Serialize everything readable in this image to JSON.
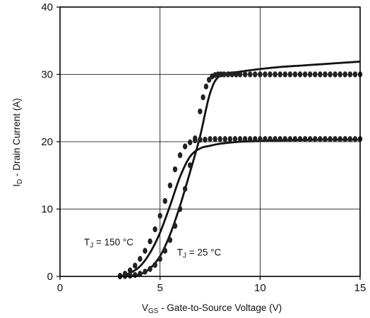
{
  "chart_data": {
    "type": "line",
    "xlabel": "V_GS - Gate-to-Source Voltage (V)",
    "xlabel_sub": {
      "main": "V",
      "sub": "GS",
      "rest": " - Gate-to-Source Voltage (V)"
    },
    "ylabel": "I_D - Drain Current (A)",
    "ylabel_sub": {
      "main": "I",
      "sub": "D",
      "rest": " - Drain Current  (A)"
    },
    "xlim": [
      0,
      15
    ],
    "ylim": [
      0,
      40
    ],
    "xticks": [
      0,
      5,
      10,
      15
    ],
    "yticks": [
      0,
      10,
      20,
      30,
      40
    ],
    "grid": true,
    "annotations": [
      {
        "main": "T",
        "sub": "J",
        "rest": " = 150 °C",
        "x": 1.2,
        "y": 4.6
      },
      {
        "main": "T",
        "sub": "J",
        "rest": " = 25 °C",
        "x": 5.85,
        "y": 3.1
      }
    ],
    "series": [
      {
        "style": "solid",
        "x": [
          3.0,
          3.5,
          4.0,
          4.5,
          5.0,
          5.5,
          6.0,
          6.5,
          7.0,
          7.5,
          8.0,
          9.0,
          10.0,
          11.0,
          12.0,
          13.0,
          14.0,
          15.0
        ],
        "y": [
          0,
          0.1,
          0.3,
          1.2,
          3.0,
          6.2,
          10.5,
          15.5,
          20.8,
          27.2,
          29.8,
          30.4,
          30.8,
          31.1,
          31.3,
          31.5,
          31.7,
          31.9
        ]
      },
      {
        "style": "solid",
        "x": [
          3.0,
          3.5,
          4.0,
          4.5,
          5.0,
          5.5,
          6.0,
          6.5,
          7.0,
          7.5,
          8.0,
          9.0,
          10.0,
          11.0,
          12.0,
          13.0,
          14.0,
          15.0
        ],
        "y": [
          0,
          0.5,
          1.5,
          3.5,
          6.5,
          10.5,
          14.8,
          17.8,
          19.0,
          19.4,
          19.7,
          20.0,
          20.1,
          20.2,
          20.25,
          20.3,
          20.3,
          20.3
        ]
      },
      {
        "style": "dots",
        "x": [
          3.0,
          3.25,
          3.5,
          3.75,
          4.0,
          4.25,
          4.5,
          4.75,
          5.0,
          5.25,
          5.5,
          5.75,
          6.0,
          6.25,
          6.5,
          6.75,
          7.0,
          7.15,
          7.3,
          7.45,
          7.6,
          7.75,
          7.9,
          8.05,
          8.2,
          8.4,
          8.6,
          8.8,
          9.0,
          9.25,
          9.5,
          9.75,
          10.0,
          10.25,
          10.5,
          10.75,
          11.0,
          11.25,
          11.5,
          11.75,
          12.0,
          12.25,
          12.5,
          12.75,
          13.0,
          13.25,
          13.5,
          13.75,
          14.0,
          14.25,
          14.5,
          14.75,
          15.0
        ],
        "y": [
          0,
          0.05,
          0.1,
          0.2,
          0.4,
          0.7,
          1.1,
          1.7,
          2.6,
          3.8,
          5.4,
          7.5,
          10.0,
          13.0,
          16.5,
          20.5,
          24.5,
          26.6,
          28.2,
          29.2,
          29.7,
          29.9,
          30.0,
          30.0,
          30.0,
          30.0,
          30.0,
          30.0,
          30.0,
          30.0,
          30.0,
          30.0,
          30.0,
          30.0,
          30.0,
          30.0,
          30.0,
          30.0,
          30.0,
          30.0,
          30.0,
          30.0,
          30.0,
          30.0,
          30.0,
          30.0,
          30.0,
          30.0,
          30.0,
          30.0,
          30.0,
          30.0,
          30.0
        ]
      },
      {
        "style": "dots",
        "x": [
          3.0,
          3.25,
          3.5,
          3.75,
          4.0,
          4.25,
          4.5,
          4.75,
          5.0,
          5.25,
          5.5,
          5.75,
          6.0,
          6.25,
          6.5,
          6.75,
          7.0,
          7.25,
          7.5,
          7.75,
          8.0,
          8.25,
          8.5,
          8.75,
          9.0,
          9.25,
          9.5,
          9.75,
          10.0,
          10.25,
          10.5,
          10.75,
          11.0,
          11.25,
          11.5,
          11.75,
          12.0,
          12.25,
          12.5,
          12.75,
          13.0,
          13.25,
          13.5,
          13.75,
          14.0,
          14.25,
          14.5,
          14.75,
          15.0
        ],
        "y": [
          0.1,
          0.4,
          0.9,
          1.6,
          2.6,
          3.8,
          5.2,
          7.0,
          9.0,
          11.2,
          13.5,
          15.9,
          18.0,
          19.3,
          19.9,
          20.2,
          20.3,
          20.3,
          20.4,
          20.4,
          20.4,
          20.4,
          20.4,
          20.4,
          20.4,
          20.4,
          20.4,
          20.4,
          20.4,
          20.4,
          20.4,
          20.4,
          20.4,
          20.4,
          20.4,
          20.4,
          20.4,
          20.4,
          20.4,
          20.4,
          20.4,
          20.4,
          20.4,
          20.4,
          20.4,
          20.4,
          20.4,
          20.4,
          20.4
        ]
      }
    ]
  }
}
